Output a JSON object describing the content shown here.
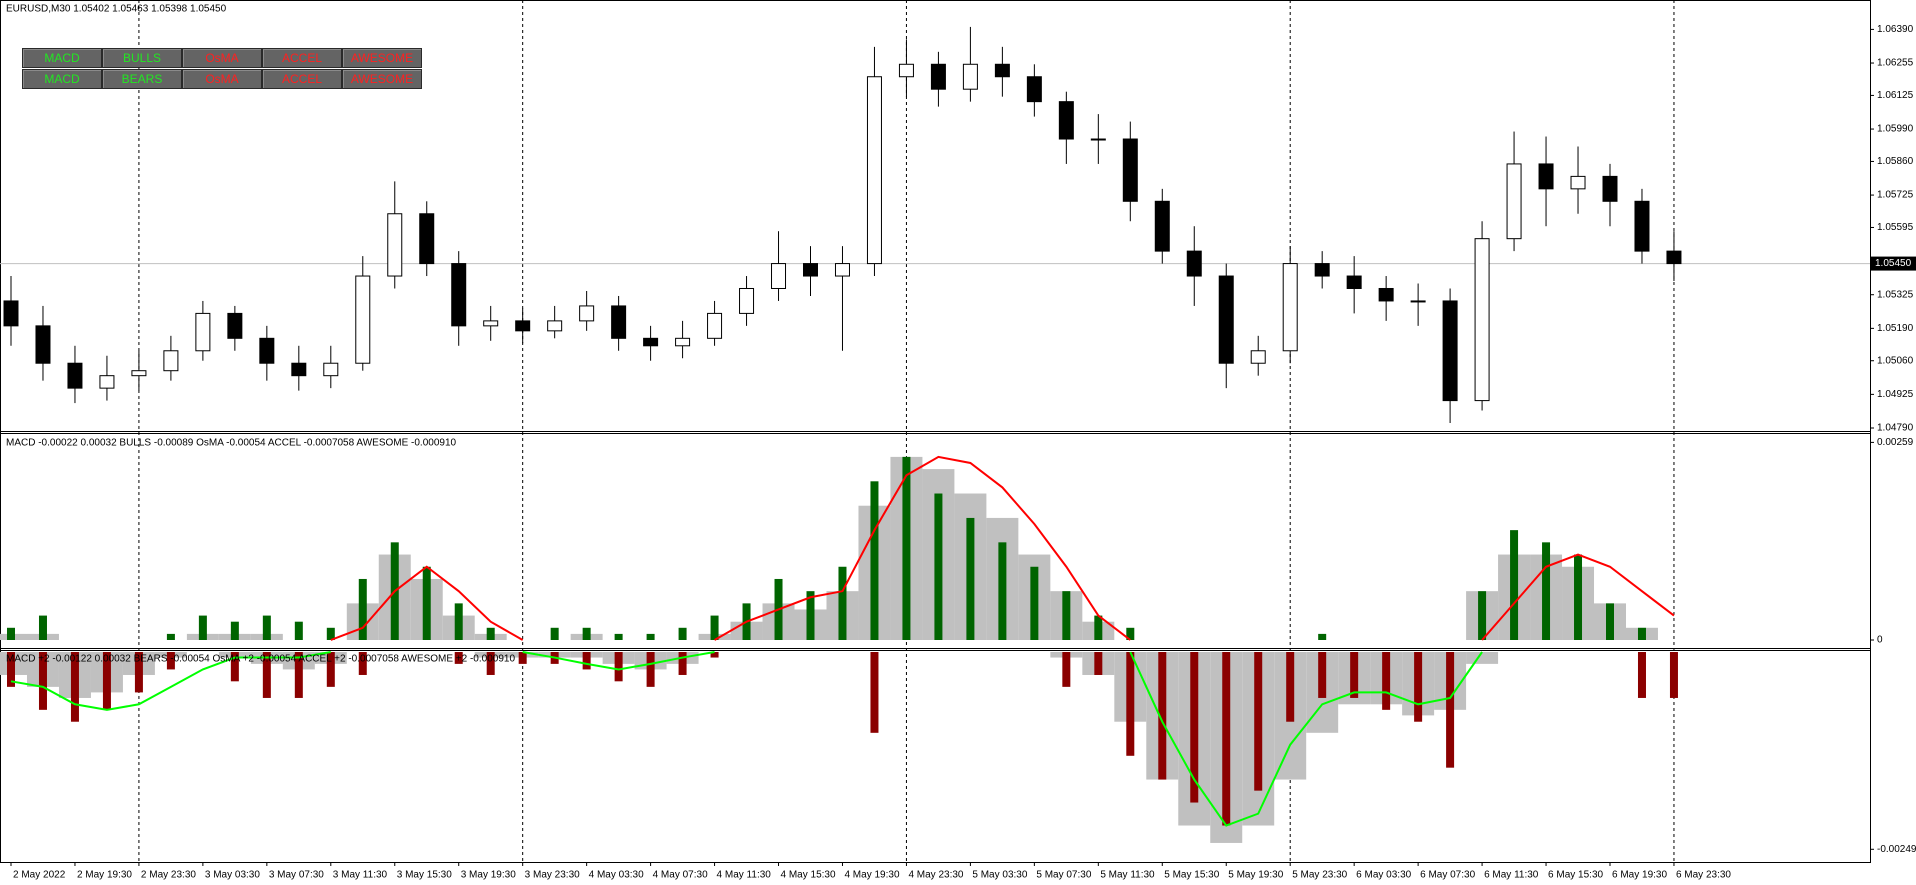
{
  "chart_data": [
    {
      "type": "candlestick",
      "title": "EURUSD,M30  1.05402 1.05463 1.05398 1.05450",
      "categories": [
        "2 May 2022",
        null,
        "2 May 19:30",
        null,
        "2 May 23:30",
        null,
        "3 May 03:30",
        null,
        "3 May 07:30",
        null,
        "3 May 11:30",
        null,
        "3 May 15:30",
        null,
        "3 May 19:30",
        null,
        "3 May 23:30",
        null,
        "4 May 03:30",
        null,
        "4 May 07:30",
        null,
        "4 May 11:30",
        null,
        "4 May 15:30",
        null,
        "4 May 19:30",
        null,
        "4 May 23:30",
        null,
        "5 May 03:30",
        null,
        "5 May 07:30",
        null,
        "5 May 11:30",
        null,
        "5 May 15:30",
        null,
        "5 May 19:30",
        null,
        "5 May 23:30",
        null,
        "6 May 03:30",
        null,
        "6 May 07:30",
        null,
        "6 May 11:30",
        null,
        "6 May 15:30",
        null,
        "6 May 19:30",
        null,
        "6 May 23:30"
      ],
      "open": [
        1.053,
        1.052,
        1.0505,
        1.0495,
        1.05,
        1.0502,
        1.051,
        1.0525,
        1.0515,
        1.0505,
        1.05,
        1.0505,
        1.054,
        1.0565,
        1.0545,
        1.052,
        1.0522,
        1.0518,
        1.0522,
        1.0528,
        1.0515,
        1.0512,
        1.0515,
        1.0525,
        1.0535,
        1.0545,
        1.054,
        1.0545,
        1.062,
        1.0625,
        1.0615,
        1.0625,
        1.062,
        1.061,
        1.0595,
        1.0595,
        1.057,
        1.055,
        1.054,
        1.0505,
        1.051,
        1.0545,
        1.054,
        1.0535,
        1.053,
        1.053,
        1.049,
        1.0555,
        1.0585,
        1.0575,
        1.058,
        1.057,
        1.055
      ],
      "high": [
        1.054,
        1.0528,
        1.0512,
        1.0508,
        1.051,
        1.0516,
        1.053,
        1.0528,
        1.052,
        1.0512,
        1.0512,
        1.0548,
        1.0578,
        1.057,
        1.055,
        1.0528,
        1.0527,
        1.0528,
        1.0534,
        1.0532,
        1.052,
        1.0522,
        1.053,
        1.054,
        1.0558,
        1.0552,
        1.0552,
        1.0632,
        1.0635,
        1.063,
        1.064,
        1.0632,
        1.0625,
        1.0614,
        1.0605,
        1.0602,
        1.0575,
        1.056,
        1.0545,
        1.0516,
        1.0552,
        1.055,
        1.0548,
        1.054,
        1.0537,
        1.0535,
        1.0562,
        1.0598,
        1.0596,
        1.0592,
        1.0585,
        1.0575,
        1.0558
      ],
      "low": [
        1.0512,
        1.0498,
        1.0489,
        1.049,
        1.0494,
        1.0498,
        1.0506,
        1.051,
        1.0498,
        1.0494,
        1.0495,
        1.0502,
        1.0535,
        1.054,
        1.0512,
        1.0514,
        1.0513,
        1.0515,
        1.0518,
        1.051,
        1.0506,
        1.0507,
        1.0512,
        1.052,
        1.053,
        1.0532,
        1.051,
        1.054,
        1.0612,
        1.0608,
        1.061,
        1.0612,
        1.0604,
        1.0585,
        1.0585,
        1.0562,
        1.0545,
        1.0528,
        1.0495,
        1.05,
        1.0505,
        1.0535,
        1.0525,
        1.0522,
        1.052,
        1.0481,
        1.0486,
        1.055,
        1.056,
        1.0565,
        1.056,
        1.0545,
        1.0538
      ],
      "close": [
        1.052,
        1.0505,
        1.0495,
        1.05,
        1.0502,
        1.051,
        1.0525,
        1.0515,
        1.0505,
        1.05,
        1.0505,
        1.054,
        1.0565,
        1.0545,
        1.052,
        1.0522,
        1.0518,
        1.0522,
        1.0528,
        1.0515,
        1.0512,
        1.0515,
        1.0525,
        1.0535,
        1.0545,
        1.054,
        1.0545,
        1.062,
        1.0625,
        1.0615,
        1.0625,
        1.062,
        1.061,
        1.0595,
        1.0595,
        1.057,
        1.055,
        1.054,
        1.0505,
        1.051,
        1.0545,
        1.054,
        1.0535,
        1.053,
        1.053,
        1.049,
        1.0555,
        1.0585,
        1.0575,
        1.058,
        1.057,
        1.055,
        1.0545
      ],
      "ylim": [
        1.0479,
        1.065
      ],
      "yticks": [
        {
          "value": 1.0639,
          "label": "1.06390"
        },
        1.06255,
        1.06125,
        {
          "value": 1.0599,
          "label": "1.05990"
        },
        {
          "value": 1.0586,
          "label": "1.05860"
        },
        1.05725,
        1.05595,
        1.05325,
        {
          "value": 1.0519,
          "label": "1.05190"
        },
        {
          "value": 1.0506,
          "label": "1.05060"
        },
        1.04925,
        {
          "value": 1.0479,
          "label": "1.04790"
        }
      ],
      "current_price": {
        "value": 1.0545,
        "label": "1.05450"
      },
      "buttons": [
        [
          {
            "label": "MACD",
            "color": "#22e622"
          },
          {
            "label": "BULLS",
            "color": "#22e622"
          },
          {
            "label": "OsMA",
            "color": "#ff2020"
          },
          {
            "label": "ACCEL",
            "color": "#ff2020"
          },
          {
            "label": "AWESOME",
            "color": "#ff2020"
          }
        ],
        [
          {
            "label": "MACD",
            "color": "#22e622"
          },
          {
            "label": "BEARS",
            "color": "#22e622"
          },
          {
            "label": "OsMA",
            "color": "#ff2020"
          },
          {
            "label": "ACCEL",
            "color": "#ff2020"
          },
          {
            "label": "AWESOME",
            "color": "#ff2020"
          }
        ]
      ]
    },
    {
      "type": "indicator",
      "title": "MACD -0.00022 0.00032  BULLS -0.00089  OsMA -0.00054  ACCEL -0.0007058  AWESOME -0.000910",
      "series": [
        {
          "type": "bar",
          "color": "#c0c0c0",
          "values": [
            8e-05,
            8e-05,
            0,
            0,
            0,
            0,
            8e-05,
            8e-05,
            8e-05,
            0,
            0,
            0.00048,
            0.00112,
            0.0008,
            0.00032,
            8e-05,
            0,
            0,
            8e-05,
            0,
            0,
            0,
            8e-05,
            0.00024,
            0.00048,
            0.0004,
            0.00064,
            0.00176,
            0.0024,
            0.00224,
            0.00192,
            0.0016,
            0.00112,
            0.00064,
            0.00024,
            0,
            0,
            0,
            0,
            0,
            0,
            0,
            0,
            0,
            0,
            0,
            0.00064,
            0.00112,
            0.00112,
            0.00096,
            0.00048,
            0.00016,
            0
          ]
        },
        {
          "type": "bar",
          "color": "#006400",
          "values": [
            0.00016,
            0.00032,
            0,
            0,
            0,
            8e-05,
            0.00032,
            0.00024,
            0.00032,
            0.00024,
            0.00016,
            0.0008,
            0.00128,
            0.00096,
            0.00048,
            0.00016,
            0,
            0.00016,
            0.00016,
            8e-05,
            8e-05,
            0.00016,
            0.00032,
            0.00048,
            0.0008,
            0.00064,
            0.00096,
            0.00208,
            0.0024,
            0.00192,
            0.0016,
            0.00128,
            0.00096,
            0.00064,
            0.00032,
            0.00016,
            0,
            0,
            0,
            0,
            0,
            8e-05,
            0,
            0,
            0,
            0,
            0.00064,
            0.00144,
            0.00128,
            0.00112,
            0.00048,
            0.00016,
            0
          ]
        },
        {
          "type": "line",
          "color": "#ff0000",
          "values": [
            null,
            null,
            null,
            null,
            null,
            null,
            null,
            null,
            null,
            null,
            0,
            0.00016,
            0.00064,
            0.00096,
            0.00064,
            0.00024,
            0,
            null,
            null,
            null,
            null,
            null,
            0,
            0.00024,
            0.0004,
            0.00056,
            0.00064,
            0.00144,
            0.00216,
            0.0024,
            0.00232,
            0.002,
            0.00152,
            0.00096,
            0.00032,
            0,
            null,
            null,
            null,
            null,
            null,
            null,
            null,
            null,
            null,
            null,
            0,
            0.00048,
            0.00096,
            0.00112,
            0.00096,
            0.00064,
            0.00032
          ]
        }
      ],
      "ylim": [
        0,
        0.0027
      ],
      "yticks": [
        0,
        0.00259
      ]
    },
    {
      "type": "indicator",
      "title": "MACD +2 -0.00122 0.00032  BEARS -0.00054  OsMA +2 -0.00054  ACCEL +2 -0.0007058  AWESOME +2 -0.000910",
      "series": [
        {
          "type": "bar",
          "color": "#c0c0c0",
          "values": [
            -0.00029,
            -0.00044,
            -0.00058,
            -0.00051,
            -0.00029,
            -7e-05,
            0,
            -7e-05,
            -0.00015,
            -0.00022,
            -0.00015,
            0,
            0,
            0,
            0,
            -7e-05,
            -7e-05,
            -7e-05,
            -7e-05,
            -0.00015,
            -0.00022,
            -0.00015,
            0,
            0,
            0,
            0,
            0,
            0,
            0,
            0,
            0,
            0,
            0,
            -7e-05,
            -0.00029,
            -0.00088,
            -0.00161,
            -0.00219,
            -0.00241,
            -0.00219,
            -0.00161,
            -0.00102,
            -0.00066,
            -0.00066,
            -0.0008,
            -0.00073,
            -0.00015,
            0,
            0,
            0,
            0,
            0,
            0
          ]
        },
        {
          "type": "bar",
          "color": "#8b0000",
          "values": [
            -0.00044,
            -0.00073,
            -0.00088,
            -0.00073,
            -0.00051,
            -0.00022,
            0,
            -0.00037,
            -0.00058,
            -0.00058,
            -0.00044,
            -0.00029,
            0,
            0,
            -0.00015,
            -0.00029,
            -0.00015,
            -0.00015,
            -0.00022,
            -0.00037,
            -0.00044,
            -0.00029,
            -7e-05,
            0,
            0,
            0,
            0,
            -0.00102,
            0,
            0,
            0,
            0,
            0,
            -0.00044,
            -0.00029,
            -0.00131,
            -0.00161,
            -0.0019,
            -0.00219,
            -0.00175,
            -0.00088,
            -0.00058,
            -0.00058,
            -0.00073,
            -0.00088,
            -0.00146,
            0,
            0,
            0,
            0,
            0,
            -0.00058,
            -0.00058
          ]
        },
        {
          "type": "line",
          "color": "#00ff00",
          "values": [
            -0.00037,
            -0.00044,
            -0.00066,
            -0.00073,
            -0.00066,
            -0.00044,
            -0.00022,
            -7e-05,
            -7e-05,
            -7e-05,
            0,
            null,
            null,
            null,
            null,
            null,
            0,
            -7e-05,
            -0.00015,
            -0.00022,
            -0.00015,
            -7e-05,
            0,
            null,
            null,
            null,
            null,
            null,
            null,
            null,
            null,
            null,
            null,
            null,
            null,
            0,
            -0.00088,
            -0.00161,
            -0.00219,
            -0.00204,
            -0.00117,
            -0.00066,
            -0.00051,
            -0.00051,
            -0.00066,
            -0.00058,
            0,
            null,
            null,
            null,
            null,
            null,
            null
          ]
        }
      ],
      "ylim": [
        -0.0026,
        0
      ],
      "yticks": [
        -0.00249
      ]
    }
  ]
}
